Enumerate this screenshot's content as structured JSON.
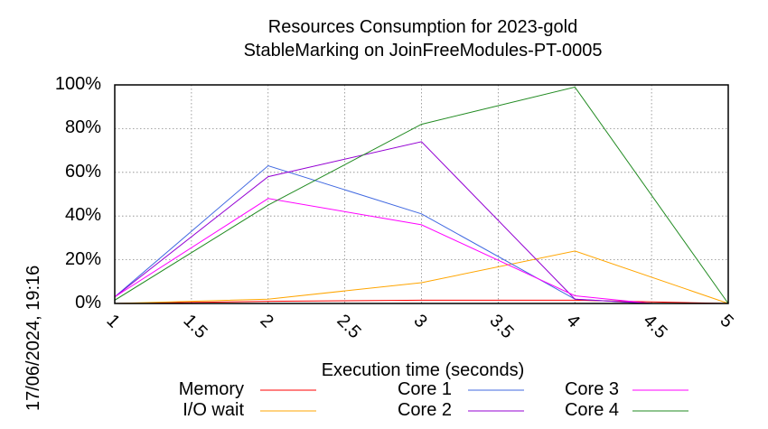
{
  "chart_data": {
    "type": "line",
    "title": "Resources Consumption for 2023-gold",
    "subtitle": "StableMarking on JoinFreeModules-PT-0005",
    "xlabel": "Execution time (seconds)",
    "ylabel": "",
    "timestamp": "17/06/2024, 19:16",
    "xlim": [
      1,
      5
    ],
    "ylim": [
      0,
      100
    ],
    "x_ticks": [
      "1",
      "1.5",
      "2",
      "2.5",
      "3",
      "3.5",
      "4",
      "4.5",
      "5"
    ],
    "y_ticks": [
      "0%",
      "20%",
      "40%",
      "60%",
      "80%",
      "100%"
    ],
    "grid": true,
    "legend_position": "bottom",
    "series": [
      {
        "name": "Memory",
        "color": "#ff0000",
        "x": [
          1,
          2,
          3,
          4,
          5
        ],
        "y": [
          0,
          1,
          1.5,
          1.5,
          0
        ]
      },
      {
        "name": "I/O wait",
        "color": "#ffa500",
        "x": [
          1,
          2,
          3,
          4,
          5
        ],
        "y": [
          0,
          2,
          9.5,
          24,
          0
        ]
      },
      {
        "name": "Core 1",
        "color": "#4169e1",
        "x": [
          1,
          2,
          3,
          4,
          4.5,
          5
        ],
        "y": [
          3,
          63,
          41,
          2,
          0,
          0
        ]
      },
      {
        "name": "Core 2",
        "color": "#9400d3",
        "x": [
          1,
          2,
          3,
          4,
          4.5,
          5
        ],
        "y": [
          3,
          58,
          74,
          2,
          0,
          0
        ]
      },
      {
        "name": "Core 3",
        "color": "#ff00ff",
        "x": [
          1,
          2,
          3,
          4,
          4.5,
          5
        ],
        "y": [
          3,
          48,
          36,
          3.5,
          0,
          0
        ]
      },
      {
        "name": "Core 4",
        "color": "#228b22",
        "x": [
          1,
          2,
          3,
          4,
          5
        ],
        "y": [
          1.5,
          45,
          82,
          99,
          0
        ]
      }
    ]
  }
}
